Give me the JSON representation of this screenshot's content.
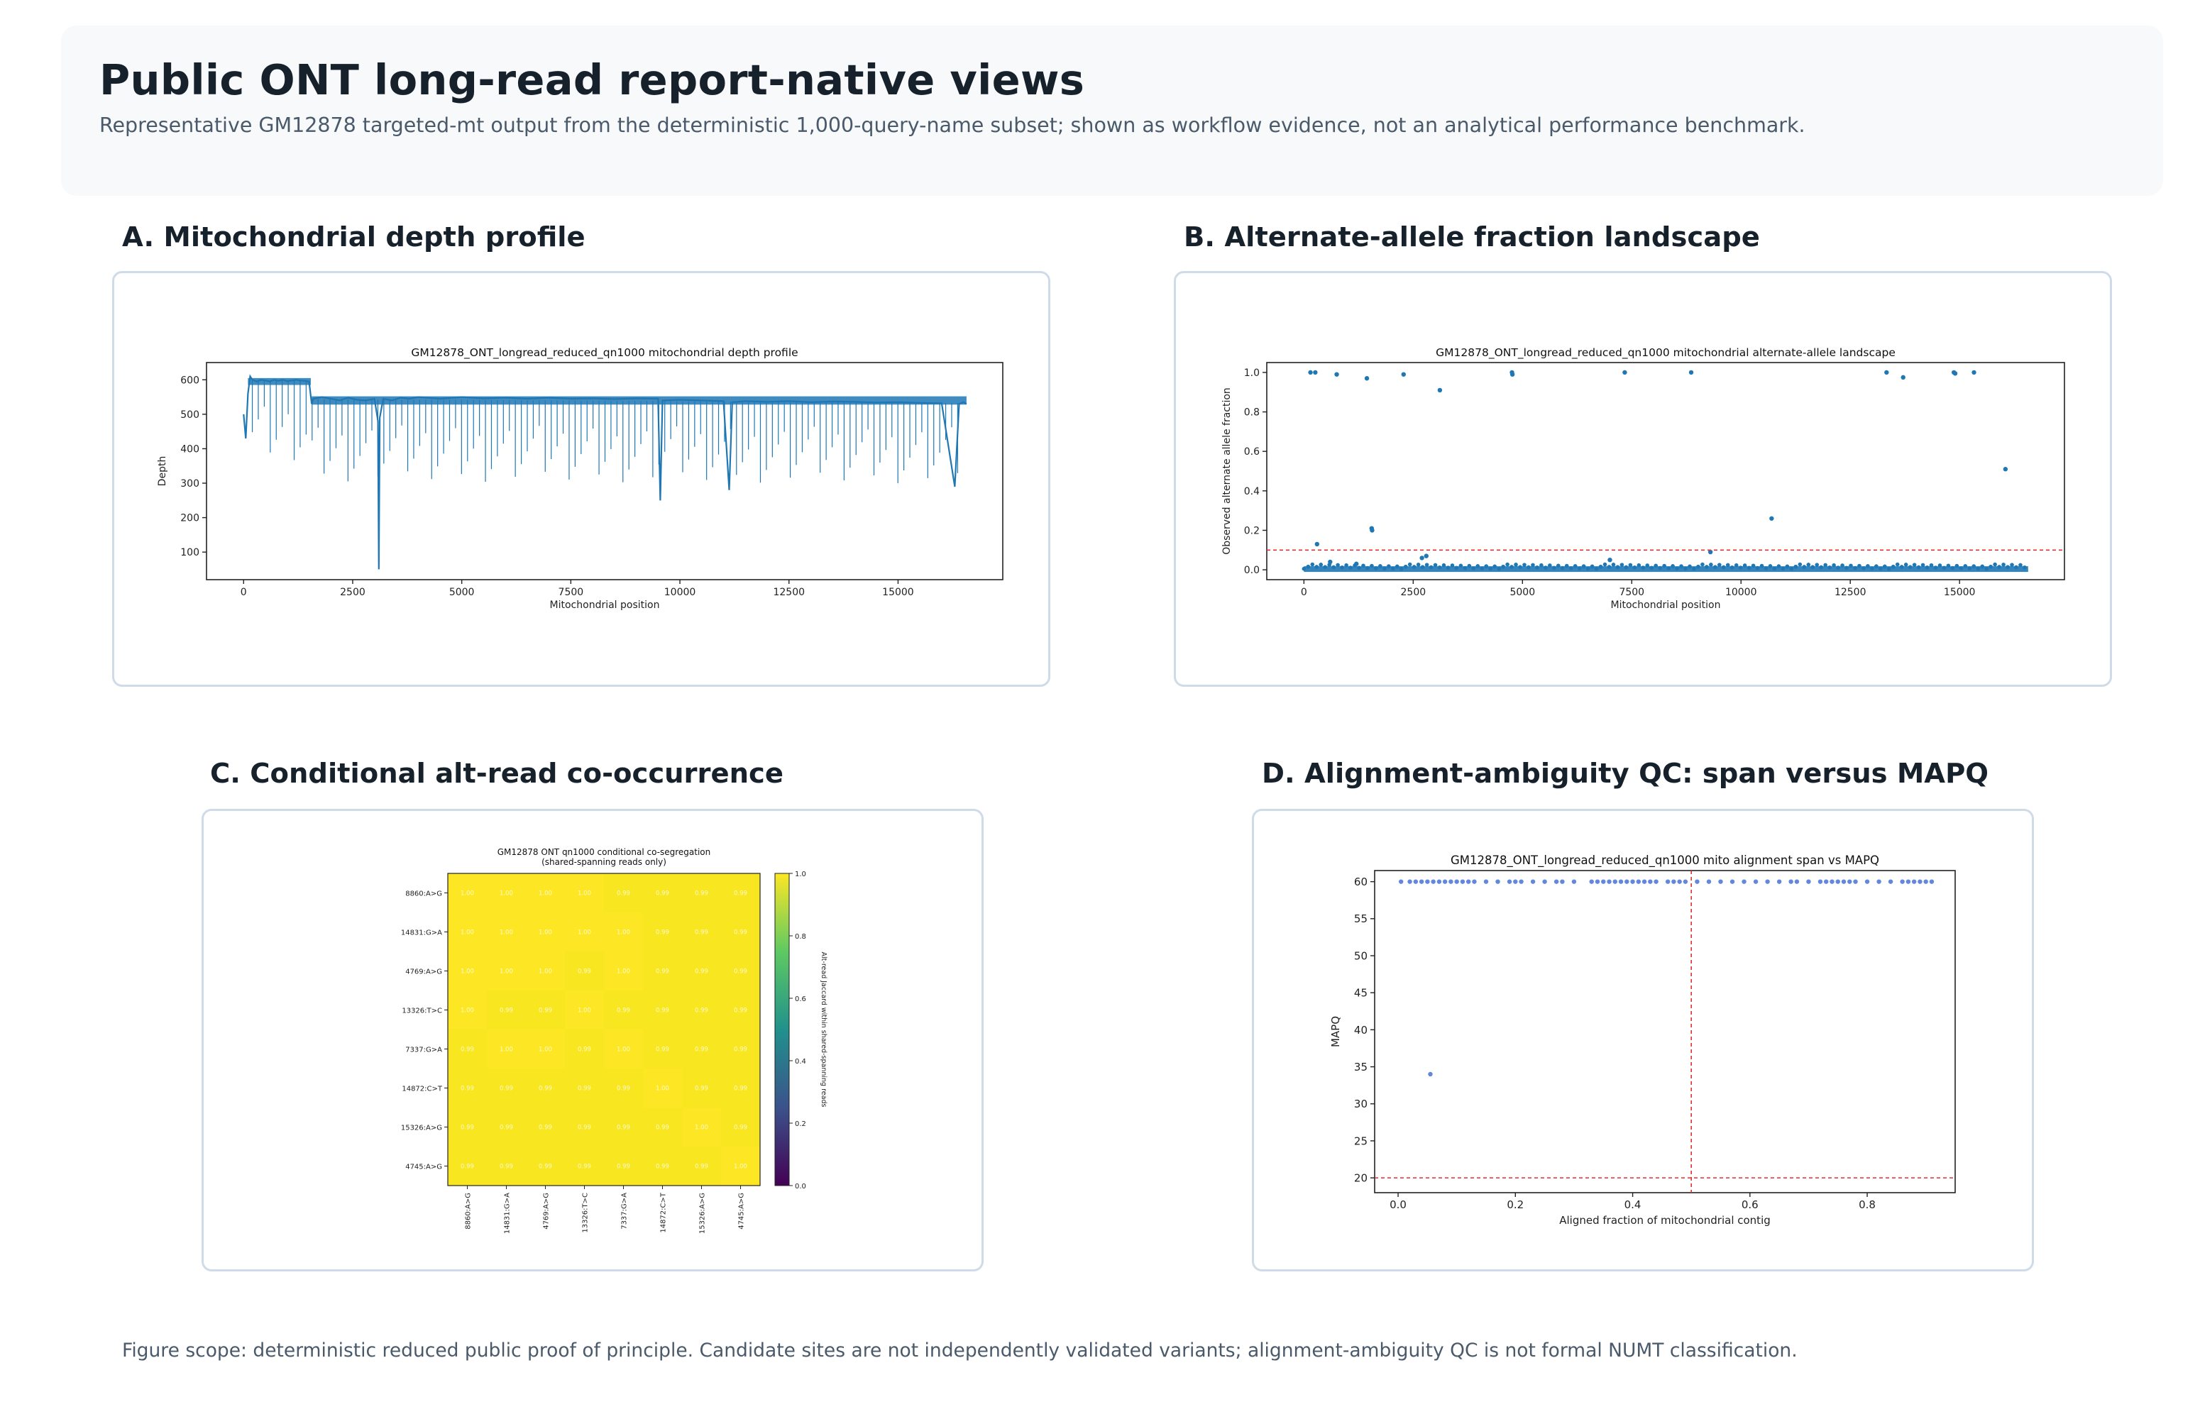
{
  "header": {
    "title": "Public ONT long-read report-native views",
    "subtitle": "Representative GM12878 targeted-mt output from the deterministic 1,000-query-name subset; shown as workflow evidence, not an analytical performance benchmark."
  },
  "panels": {
    "a": {
      "title": "A. Mitochondrial depth profile"
    },
    "b": {
      "title": "B. Alternate-allele fraction landscape"
    },
    "c": {
      "title": "C. Conditional alt-read co-occurrence"
    },
    "d": {
      "title": "D. Alignment-ambiguity QC: span versus MAPQ"
    }
  },
  "footer": {
    "text": "Figure scope: deterministic reduced public proof of principle. Candidate sites are not independently validated variants; alignment-ambiguity QC is not formal NUMT classification."
  },
  "chart_data": [
    {
      "id": "depth",
      "type": "line",
      "title": "GM12878_ONT_longread_reduced_qn1000 mitochondrial depth profile",
      "xlabel": "Mitochondrial position",
      "ylabel": "Depth",
      "xlim": [
        -850,
        17400
      ],
      "ylim": [
        20,
        650
      ],
      "xticks": [
        0,
        2500,
        5000,
        7500,
        10000,
        12500,
        15000
      ],
      "yticks": [
        100,
        200,
        300,
        400,
        500,
        600
      ],
      "color": "#1f77b4",
      "x": [
        0,
        50,
        100,
        150,
        200,
        300,
        400,
        500,
        600,
        700,
        800,
        900,
        1000,
        1100,
        1200,
        1300,
        1400,
        1500,
        1560,
        1600,
        1800,
        2000,
        2200,
        2400,
        2600,
        2800,
        3000,
        3080,
        3100,
        3120,
        3200,
        3400,
        3600,
        3800,
        4000,
        4500,
        5000,
        5500,
        6000,
        6500,
        7000,
        7500,
        8000,
        8500,
        9000,
        9500,
        9550,
        9600,
        10000,
        10500,
        11000,
        11130,
        11200,
        11500,
        12000,
        12500,
        13000,
        13500,
        14000,
        14500,
        15000,
        15500,
        16000,
        16300,
        16400,
        16500,
        16569
      ],
      "y": [
        500,
        430,
        560,
        610,
        600,
        595,
        600,
        598,
        595,
        600,
        597,
        600,
        596,
        598,
        600,
        598,
        597,
        595,
        530,
        545,
        550,
        545,
        540,
        548,
        542,
        540,
        545,
        480,
        50,
        490,
        545,
        540,
        548,
        545,
        550,
        545,
        550,
        546,
        548,
        545,
        548,
        545,
        546,
        544,
        546,
        545,
        250,
        540,
        542,
        540,
        538,
        280,
        535,
        538,
        536,
        538,
        535,
        537,
        536,
        534,
        535,
        533,
        532,
        290,
        530,
        535,
        530
      ]
    },
    {
      "id": "af",
      "type": "scatter",
      "title": "GM12878_ONT_longread_reduced_qn1000 mitochondrial alternate-allele landscape",
      "xlabel": "Mitochondrial position",
      "ylabel": "Observed alternate allele fraction",
      "xlim": [
        -850,
        17400
      ],
      "ylim": [
        -0.05,
        1.05
      ],
      "xticks": [
        0,
        2500,
        5000,
        7500,
        10000,
        12500,
        15000
      ],
      "yticks": [
        0.0,
        0.2,
        0.4,
        0.6,
        0.8,
        1.0
      ],
      "threshold": 0.1,
      "color": "#1f77b4",
      "x": [
        150,
        260,
        750,
        1440,
        2280,
        3110,
        4760,
        4770,
        7340,
        8860,
        13330,
        13710,
        14870,
        14900,
        15330,
        16050,
        1550,
        1560,
        10700,
        300,
        2700,
        2800,
        9300,
        7000,
        600,
        1200
      ],
      "y": [
        1.0,
        1.0,
        0.99,
        0.97,
        0.99,
        0.91,
        1.0,
        0.99,
        1.0,
        1.0,
        1.0,
        0.975,
        1.0,
        0.995,
        1.0,
        0.51,
        0.21,
        0.2,
        0.26,
        0.13,
        0.06,
        0.07,
        0.09,
        0.05,
        0.04,
        0.03
      ]
    },
    {
      "id": "cooc",
      "type": "heatmap",
      "title": "GM12878 ONT qn1000 conditional co-segregation\n(shared-spanning reads only)",
      "colorbar_label": "Alt-read Jaccard within shared-spanning reads",
      "colorbar_ticks": [
        0.0,
        0.2,
        0.4,
        0.6,
        0.8,
        1.0
      ],
      "labels": [
        "8860:A>G",
        "14831:G>A",
        "4769:A>G",
        "13326:T>C",
        "7337:G>A",
        "14872:C>T",
        "15326:A>G",
        "4745:A>G"
      ],
      "matrix": [
        [
          1.0,
          1.0,
          1.0,
          1.0,
          0.99,
          0.99,
          0.99,
          0.99
        ],
        [
          1.0,
          1.0,
          1.0,
          1.0,
          1.0,
          0.99,
          0.99,
          0.99
        ],
        [
          1.0,
          1.0,
          1.0,
          0.99,
          1.0,
          0.99,
          0.99,
          0.99
        ],
        [
          1.0,
          0.99,
          0.99,
          1.0,
          0.99,
          0.99,
          0.99,
          0.99
        ],
        [
          0.99,
          1.0,
          1.0,
          0.99,
          1.0,
          0.99,
          0.99,
          0.99
        ],
        [
          0.99,
          0.99,
          0.99,
          0.99,
          0.99,
          1.0,
          0.99,
          0.99
        ],
        [
          0.99,
          0.99,
          0.99,
          0.99,
          0.99,
          0.99,
          1.0,
          0.99
        ],
        [
          0.99,
          0.99,
          0.99,
          0.99,
          0.99,
          0.99,
          0.99,
          1.0
        ]
      ]
    },
    {
      "id": "mapq",
      "type": "scatter",
      "title": "GM12878_ONT_longread_reduced_qn1000 mito alignment span vs MAPQ",
      "xlabel": "Aligned fraction of mitochondrial contig",
      "ylabel": "MAPQ",
      "xlim": [
        -0.04,
        0.95
      ],
      "ylim": [
        18,
        61.5
      ],
      "xticks": [
        0.0,
        0.2,
        0.4,
        0.6,
        0.8
      ],
      "yticks": [
        20,
        25,
        30,
        35,
        40,
        45,
        50,
        55,
        60
      ],
      "vline": 0.5,
      "hline": 20,
      "color": "#2f5fd0",
      "x": [
        0.005,
        0.02,
        0.03,
        0.04,
        0.05,
        0.06,
        0.07,
        0.08,
        0.09,
        0.1,
        0.11,
        0.12,
        0.13,
        0.15,
        0.17,
        0.19,
        0.2,
        0.21,
        0.23,
        0.25,
        0.27,
        0.28,
        0.3,
        0.33,
        0.34,
        0.35,
        0.36,
        0.37,
        0.38,
        0.39,
        0.4,
        0.41,
        0.42,
        0.43,
        0.44,
        0.46,
        0.47,
        0.48,
        0.49,
        0.51,
        0.53,
        0.55,
        0.57,
        0.59,
        0.61,
        0.63,
        0.65,
        0.67,
        0.68,
        0.7,
        0.72,
        0.73,
        0.74,
        0.75,
        0.76,
        0.77,
        0.78,
        0.8,
        0.82,
        0.84,
        0.86,
        0.87,
        0.88,
        0.89,
        0.9,
        0.91,
        0.055
      ],
      "y": [
        60,
        60,
        60,
        60,
        60,
        60,
        60,
        60,
        60,
        60,
        60,
        60,
        60,
        60,
        60,
        60,
        60,
        60,
        60,
        60,
        60,
        60,
        60,
        60,
        60,
        60,
        60,
        60,
        60,
        60,
        60,
        60,
        60,
        60,
        60,
        60,
        60,
        60,
        60,
        60,
        60,
        60,
        60,
        60,
        60,
        60,
        60,
        60,
        60,
        60,
        60,
        60,
        60,
        60,
        60,
        60,
        60,
        60,
        60,
        60,
        60,
        60,
        60,
        60,
        60,
        60,
        34
      ]
    }
  ]
}
